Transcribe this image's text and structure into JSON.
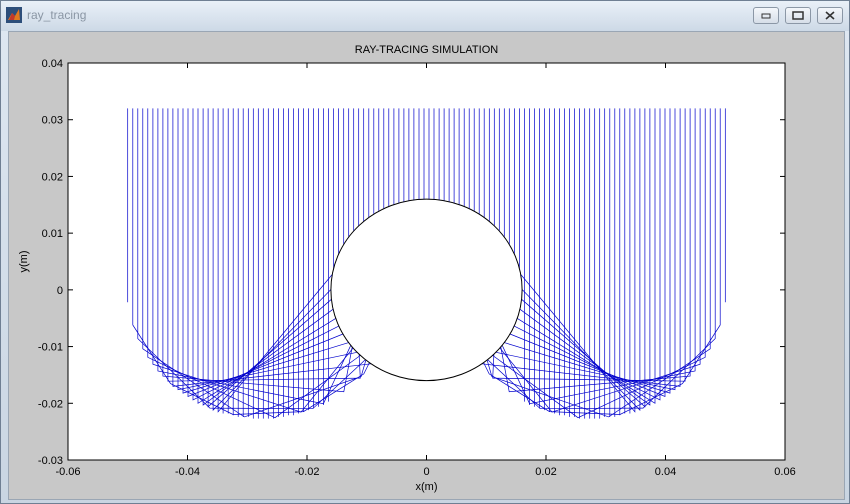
{
  "window": {
    "title": "ray_tracing"
  },
  "chart_data": {
    "type": "line",
    "title": "RAY-TRACING SIMULATION",
    "xlabel": "x(m)",
    "ylabel": "y(m)",
    "xlim": [
      -0.06,
      0.06
    ],
    "ylim": [
      -0.03,
      0.04
    ],
    "xticks": [
      "-0.06",
      "-0.04",
      "-0.02",
      "0",
      "0.02",
      "0.04",
      "0.06"
    ],
    "yticks": [
      "0.04",
      "0.03",
      "0.02",
      "0.01",
      "0",
      "-0.01",
      "-0.02",
      "-0.03"
    ],
    "xtick_values": [
      -0.06,
      -0.04,
      -0.02,
      0,
      0.02,
      0.04,
      0.06
    ],
    "ytick_values": [
      0.04,
      0.03,
      0.02,
      0.01,
      0,
      -0.01,
      -0.02,
      -0.03
    ],
    "grid": false,
    "ray_color": "#0000cc",
    "circle_color": "#000000",
    "ray_source_y": 0.032,
    "ray_x_range": [
      -0.05,
      0.05
    ],
    "ray_count": 120,
    "mirror": {
      "type": "semicircle-pair",
      "radius": 0.0225,
      "centers_x": [
        -0.0275,
        0.0275
      ],
      "center_y": 0.0
    },
    "circle": {
      "center_x": 0,
      "center_y": 0.0,
      "radius": 0.016
    }
  }
}
